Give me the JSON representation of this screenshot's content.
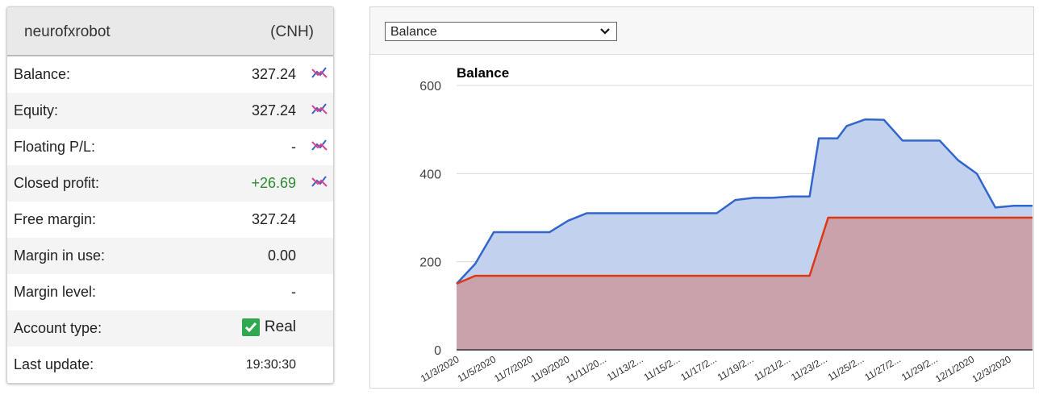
{
  "account": {
    "name": "neurofxrobot",
    "currency": "(CNH)",
    "rows": [
      {
        "label": "Balance:",
        "value": "327.24",
        "chart_icon": true
      },
      {
        "label": "Equity:",
        "value": "327.24",
        "chart_icon": true
      },
      {
        "label": "Floating P/L:",
        "value": "-",
        "chart_icon": true
      },
      {
        "label": "Closed profit:",
        "value": "+26.69",
        "chart_icon": true,
        "value_color": "#2e8b2e"
      },
      {
        "label": "Free margin:",
        "value": "327.24"
      },
      {
        "label": "Margin in use:",
        "value": "0.00"
      },
      {
        "label": "Margin level:",
        "value": "-"
      },
      {
        "label": "Account type:",
        "value": "Real",
        "icon": "check-icon"
      },
      {
        "label": "Last update:",
        "value": "19:30:30"
      }
    ]
  },
  "chart_panel": {
    "selector": {
      "selected": "Balance"
    }
  },
  "chart_data": {
    "type": "area",
    "title": "Balance",
    "ylim": [
      0,
      600
    ],
    "yticks": [
      0,
      200,
      400,
      600
    ],
    "grid": true,
    "x_tick_labels": [
      "11/3/2020",
      "11/5/2020",
      "11/7/2020",
      "11/9/2020",
      "11/11/20...",
      "11/13/2...",
      "11/15/2...",
      "11/17/2...",
      "11/19/2...",
      "11/21/2...",
      "11/23/2...",
      "11/25/2...",
      "11/27/2...",
      "11/29/2...",
      "12/1/2020",
      "12/3/2020"
    ],
    "x_start": "2020-11-03",
    "x_end": "2020-12-04",
    "series": [
      {
        "color": "#3366cc",
        "fill": "#c2d1ee",
        "points": [
          [
            "2020-11-03",
            150
          ],
          [
            "2020-11-04",
            195
          ],
          [
            "2020-11-05",
            267
          ],
          [
            "2020-11-06",
            267
          ],
          [
            "2020-11-08",
            267
          ],
          [
            "2020-11-09",
            293
          ],
          [
            "2020-11-10",
            310
          ],
          [
            "2020-11-12",
            310
          ],
          [
            "2020-11-17",
            310
          ],
          [
            "2020-11-18",
            340
          ],
          [
            "2020-11-19",
            345
          ],
          [
            "2020-11-20",
            345
          ],
          [
            "2020-11-21",
            348
          ],
          [
            "2020-11-22",
            348
          ],
          [
            "2020-11-22.5",
            480
          ],
          [
            "2020-11-23.5",
            480
          ],
          [
            "2020-11-24",
            508
          ],
          [
            "2020-11-25",
            523
          ],
          [
            "2020-11-26",
            522
          ],
          [
            "2020-11-27",
            475
          ],
          [
            "2020-11-29",
            475
          ],
          [
            "2020-11-30",
            430
          ],
          [
            "2020-12-01",
            400
          ],
          [
            "2020-12-02",
            323
          ],
          [
            "2020-12-03",
            327
          ],
          [
            "2020-12-04",
            327
          ]
        ]
      },
      {
        "color": "#dc3912",
        "fill": "#c9a2ac",
        "points": [
          [
            "2020-11-03",
            150
          ],
          [
            "2020-11-04",
            168
          ],
          [
            "2020-11-05",
            168
          ],
          [
            "2020-11-21",
            168
          ],
          [
            "2020-11-22",
            168
          ],
          [
            "2020-11-23",
            300
          ],
          [
            "2020-12-04",
            300
          ]
        ]
      }
    ]
  }
}
